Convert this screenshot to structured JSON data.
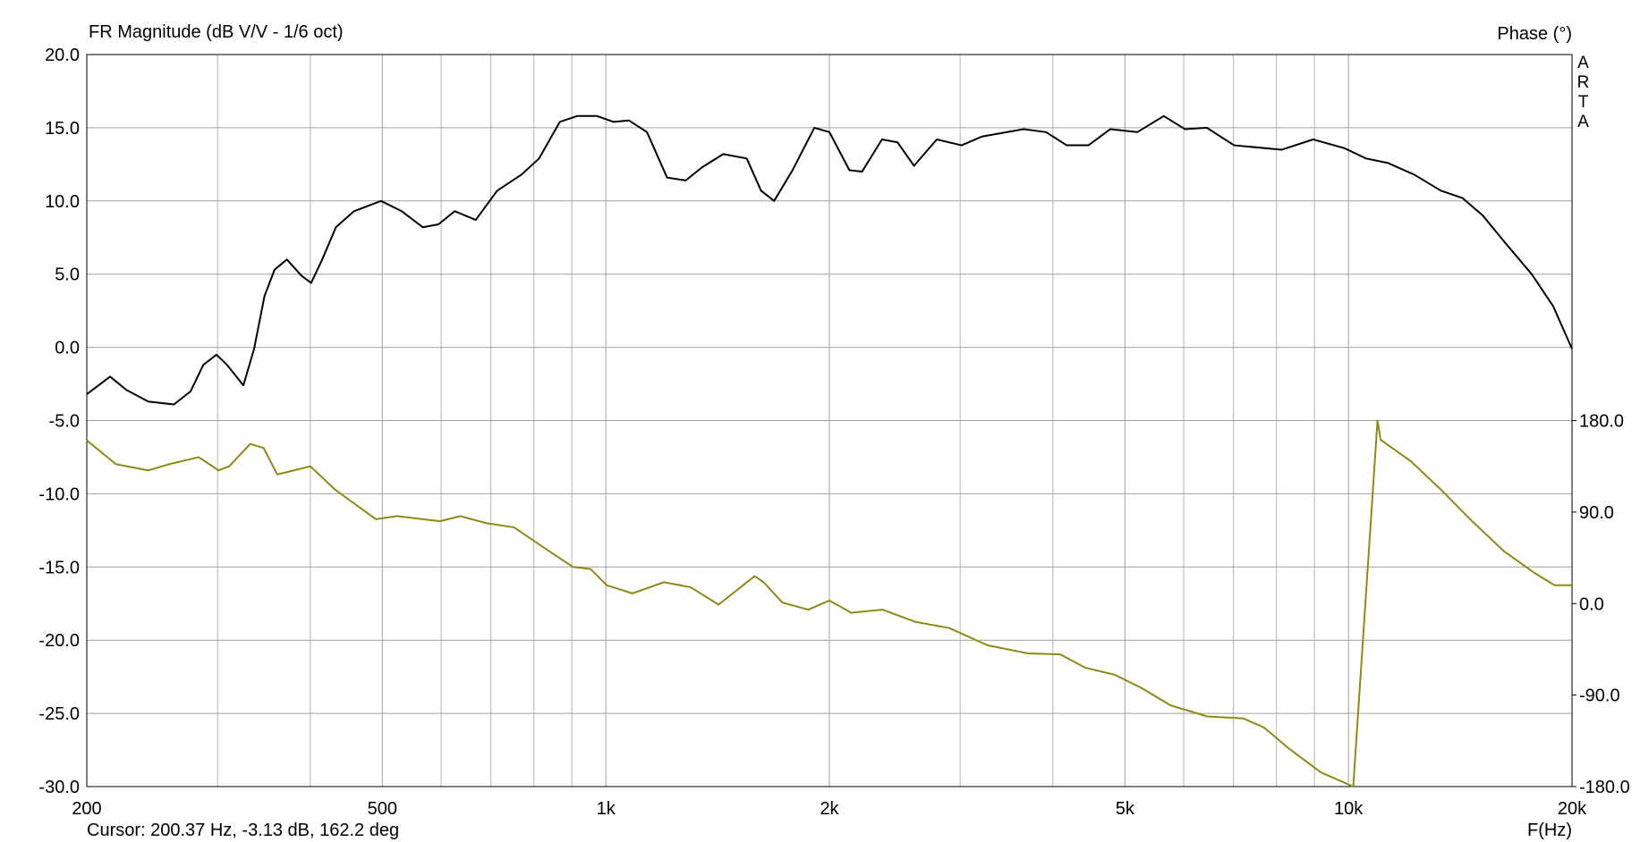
{
  "chart_data": {
    "type": "line",
    "title": "FR Magnitude (dB V/V - 1/6 oct)",
    "y2_label": "Phase (°)",
    "x_label": "F(Hz)",
    "watermark": "ARTA",
    "cursor": "Cursor: 200.37 Hz, -3.13 dB, 162.2 deg",
    "xscale": "log",
    "grid": true,
    "xlim": [
      200,
      20000
    ],
    "xticks": [
      200,
      500,
      {
        "value": 1000,
        "label": "1k"
      },
      {
        "value": 2000,
        "label": "2k"
      },
      {
        "value": 5000,
        "label": "5k"
      },
      {
        "value": 10000,
        "label": "10k"
      },
      {
        "value": 20000,
        "label": "20k"
      }
    ],
    "xminorticks": [
      300,
      400,
      600,
      700,
      800,
      900,
      3000,
      4000,
      6000,
      7000,
      8000,
      9000
    ],
    "ylim": [
      -30,
      20
    ],
    "yticks": [
      {
        "value": 20,
        "label": "20.0"
      },
      {
        "value": 15,
        "label": "15.0"
      },
      {
        "value": 10,
        "label": "10.0"
      },
      {
        "value": 5,
        "label": "5.0"
      },
      {
        "value": 0,
        "label": "0.0"
      },
      {
        "value": -5,
        "label": "-5.0"
      },
      {
        "value": -10,
        "label": "-10.0"
      },
      {
        "value": -15,
        "label": "-15.0"
      },
      {
        "value": -20,
        "label": "-20.0"
      },
      {
        "value": -25,
        "label": "-25.0"
      },
      {
        "value": -30,
        "label": "-30.0"
      }
    ],
    "y2lim": [
      -180,
      540
    ],
    "y2ticks": [
      {
        "value": 180,
        "label": "180.0"
      },
      {
        "value": 90,
        "label": "90.0"
      },
      {
        "value": 0,
        "label": "0.0"
      },
      {
        "value": -90,
        "label": "-90.0"
      },
      {
        "value": -180,
        "label": "-180.0"
      }
    ],
    "series": [
      {
        "color": "#000000",
        "x": [
          200,
          215,
          226,
          242,
          262,
          276,
          287,
          299,
          309,
          325,
          336,
          347,
          358,
          372,
          389,
          401,
          415,
          433,
          458,
          498,
          531,
          567,
          595,
          626,
          668,
          714,
          770,
          813,
          867,
          915,
          973,
          1024,
          1074,
          1136,
          1209,
          1281,
          1348,
          1439,
          1548,
          1618,
          1685,
          1784,
          1909,
          2000,
          2128,
          2213,
          2354,
          2471,
          2600,
          2790,
          3013,
          3211,
          3651,
          3915,
          4175,
          4465,
          4777,
          5197,
          5640,
          6025,
          6444,
          7015,
          8134,
          8963,
          9877,
          10560,
          11290,
          12260,
          13320,
          14240,
          15170,
          16220,
          17650,
          18870,
          20000
        ],
        "values": [
          -3.2,
          -2.0,
          -2.9,
          -3.7,
          -3.9,
          -3.0,
          -1.2,
          -0.5,
          -1.2,
          -2.6,
          -0.1,
          3.5,
          5.3,
          6.0,
          4.9,
          4.4,
          6.0,
          8.2,
          9.3,
          10.0,
          9.3,
          8.2,
          8.4,
          9.3,
          8.7,
          10.7,
          11.8,
          12.9,
          15.4,
          15.8,
          15.8,
          15.4,
          15.5,
          14.7,
          11.6,
          11.4,
          12.3,
          13.2,
          12.9,
          10.7,
          10.0,
          12.1,
          15.0,
          14.7,
          12.1,
          12.0,
          14.2,
          14.0,
          12.4,
          14.2,
          13.8,
          14.4,
          14.9,
          14.7,
          13.8,
          13.8,
          14.9,
          14.7,
          15.8,
          14.9,
          15.0,
          13.8,
          13.5,
          14.2,
          13.6,
          12.9,
          12.6,
          11.8,
          10.7,
          10.2,
          9.0,
          7.2,
          5.0,
          2.8,
          -0.1
        ]
      },
      {
        "color": "#8c8a14",
        "axis": "y2",
        "x": [
          200,
          219,
          242,
          258,
          283,
          301,
          311,
          332,
          346,
          361,
          380,
          400,
          432,
          490,
          523,
          598,
          637,
          691,
          752,
          833,
          903,
          954,
          1003,
          1086,
          1198,
          1301,
          1418,
          1494,
          1586,
          1631,
          1728,
          1874,
          2000,
          2140,
          2358,
          2612,
          2899,
          3265,
          3701,
          4094,
          4417,
          4844,
          5263,
          5756,
          6453,
          7220,
          7699,
          8295,
          9180,
          10149,
          10943,
          11050,
          12135,
          13323,
          14624,
          16225,
          17816,
          18947,
          20000
        ],
        "values": [
          160.5,
          137,
          131,
          137,
          144,
          131,
          135,
          157,
          153,
          127,
          131,
          135,
          112,
          83,
          86,
          81,
          86,
          79,
          75,
          53,
          36,
          34,
          18,
          10,
          21,
          16,
          -1,
          12,
          27,
          21,
          1,
          -6,
          3,
          -9,
          -6,
          -18,
          -24,
          -41,
          -49,
          -50,
          -63,
          -70,
          -83,
          -100,
          -111,
          -113,
          -122,
          -142,
          -166,
          -180,
          180,
          161,
          140,
          112,
          82,
          51,
          30,
          18,
          18
        ]
      }
    ]
  }
}
